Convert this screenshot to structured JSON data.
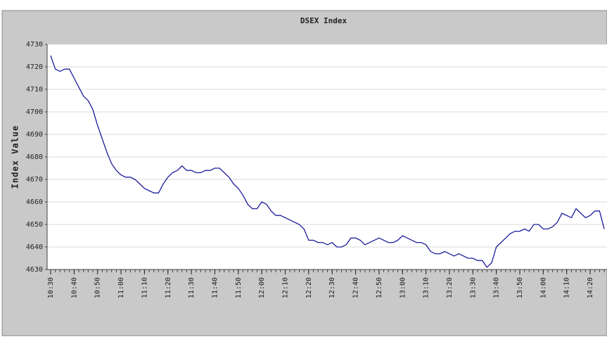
{
  "chart_data": {
    "type": "line",
    "title": "DSEX Index",
    "y_label": "Index Value",
    "categories": [
      "10:30",
      null,
      null,
      null,
      null,
      "10:40",
      null,
      null,
      null,
      null,
      "10:50",
      null,
      null,
      null,
      null,
      "11:00",
      null,
      null,
      null,
      null,
      "11:10",
      null,
      null,
      null,
      null,
      "11:20",
      null,
      null,
      null,
      null,
      "11:30",
      null,
      null,
      null,
      null,
      "11:40",
      null,
      null,
      null,
      null,
      "11:50",
      null,
      null,
      null,
      null,
      "12:00",
      null,
      null,
      null,
      null,
      "12:10",
      null,
      null,
      null,
      null,
      "12:20",
      null,
      null,
      null,
      null,
      "12:30",
      null,
      null,
      null,
      null,
      "12:40",
      null,
      null,
      null,
      null,
      "12:50",
      null,
      null,
      null,
      null,
      "13:00",
      null,
      null,
      null,
      null,
      "13:10",
      null,
      null,
      null,
      null,
      "13:20",
      null,
      null,
      null,
      null,
      "13:30",
      null,
      null,
      null,
      null,
      "13:40",
      null,
      null,
      null,
      null,
      "13:50",
      null,
      null,
      null,
      null,
      "14:00",
      null,
      null,
      null,
      null,
      "14:10",
      null,
      null,
      null,
      null,
      "14:20",
      null,
      null,
      null
    ],
    "values": [
      4725,
      4719,
      4718,
      4719,
      4719,
      4715,
      4711,
      4707,
      4705,
      4701,
      4694,
      4688,
      4682,
      4677,
      4674,
      4672,
      4671,
      4671,
      4670,
      4668,
      4666,
      4665,
      4664,
      4664,
      4668,
      4671,
      4673,
      4674,
      4676,
      4674,
      4674,
      4673,
      4673,
      4674,
      4674,
      4675,
      4675,
      4673,
      4671,
      4668,
      4666,
      4663,
      4659,
      4657,
      4657,
      4660,
      4659,
      4656,
      4654,
      4654,
      4653,
      4652,
      4651,
      4650,
      4648,
      4643,
      4643,
      4642,
      4642,
      4641,
      4642,
      4640,
      4640,
      4641,
      4644,
      4644,
      4643,
      4641,
      4642,
      4643,
      4644,
      4643,
      4642,
      4642,
      4643,
      4645,
      4644,
      4643,
      4642,
      4642,
      4641,
      4638,
      4637,
      4637,
      4638,
      4637,
      4636,
      4637,
      4636,
      4635,
      4635,
      4634,
      4634,
      4631,
      4633,
      4640,
      4642,
      4644,
      4646,
      4647,
      4647,
      4648,
      4647,
      4650,
      4650,
      4648,
      4648,
      4649,
      4651,
      4655,
      4654,
      4653,
      4657,
      4655,
      4653,
      4654,
      4656,
      4656,
      4648
    ],
    "color": "#1c1c9c",
    "ylim": [
      4630,
      4730
    ],
    "yticks": [
      4630,
      4640,
      4650,
      4660,
      4670,
      4680,
      4690,
      4700,
      4710,
      4720,
      4730
    ],
    "grid": true
  }
}
